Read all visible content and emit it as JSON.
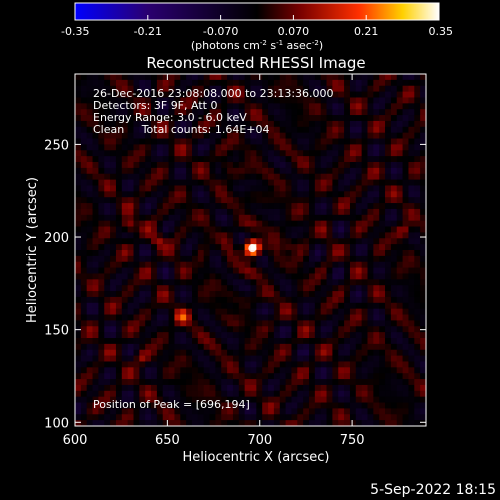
{
  "chart_data": {
    "type": "heatmap",
    "title": "Reconstructed RHESSI Image",
    "xlabel": "Heliocentric X (arcsec)",
    "ylabel": "Heliocentric Y (arcsec)",
    "xlim": [
      600,
      790
    ],
    "ylim": [
      98,
      288
    ],
    "x_ticks": [
      600,
      650,
      700,
      750
    ],
    "y_ticks": [
      100,
      150,
      200,
      250
    ],
    "colorbar": {
      "ticks": [
        "-0.35",
        "-0.21",
        "-0.070",
        "0.070",
        "0.21",
        "0.35"
      ],
      "range": [
        -0.35,
        0.35
      ],
      "unit_text": "(photons cm",
      "unit_exp1": "-2",
      "unit_mid": " s",
      "unit_exp2": "-1",
      "unit_mid2": " asec",
      "unit_exp3": "-2",
      "unit_end": ")"
    },
    "info_lines": [
      "26-Dec-2016 23:08:08.000 to 23:13:36.000",
      "Detectors: 3F 9F, Att 0",
      "Energy Range: 3.0 - 6.0 keV",
      "Clean     Total counts: 1.64E+04"
    ],
    "peak_label": "Position of Peak = [696,194]",
    "peak": {
      "x": 696,
      "y": 194,
      "value": 0.35
    },
    "secondary_sources": [
      {
        "x": 629,
        "y": 206,
        "value": 0.16
      },
      {
        "x": 658,
        "y": 157,
        "value": 0.15
      },
      {
        "x": 645,
        "y": 198,
        "value": 0.11
      },
      {
        "x": 778,
        "y": 203,
        "value": 0.12
      },
      {
        "x": 682,
        "y": 238,
        "value": 0.09
      },
      {
        "x": 716,
        "y": 196,
        "value": 0.1
      },
      {
        "x": 636,
        "y": 135,
        "value": 0.1
      }
    ]
  },
  "footer": {
    "timestamp": "5-Sep-2022 18:15"
  }
}
